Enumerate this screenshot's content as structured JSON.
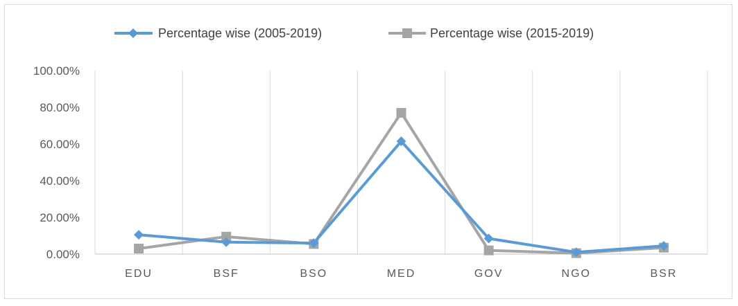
{
  "chart_data": {
    "type": "line",
    "categories": [
      "EDU",
      "BSF",
      "BSO",
      "MED",
      "GOV",
      "NGO",
      "BSR"
    ],
    "series": [
      {
        "name": "Percentage wise  (2005-2019)",
        "values": [
          10.5,
          6.5,
          6.0,
          61.5,
          8.5,
          1.0,
          4.5
        ],
        "color": "#5b9bd5",
        "marker": "diamond"
      },
      {
        "name": "Percentage wise  (2015-2019)",
        "values": [
          3.0,
          9.5,
          5.5,
          77.0,
          2.0,
          0.5,
          3.5
        ],
        "color": "#a5a5a5",
        "marker": "square"
      }
    ],
    "yticks": [
      "0.00%",
      "20.00%",
      "40.00%",
      "60.00%",
      "80.00%",
      "100.00%"
    ],
    "ylim": [
      0,
      100
    ],
    "grid": "vertical",
    "legend": "top"
  }
}
